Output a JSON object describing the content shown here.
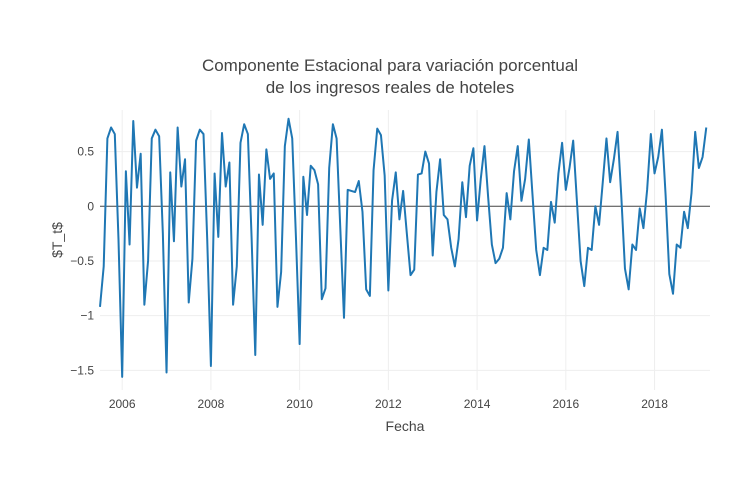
{
  "chart_data": {
    "type": "line",
    "title_lines": [
      "Componente Estacional para variación porcentual",
      "de los ingresos reales de hoteles"
    ],
    "xlabel": "Fecha",
    "ylabel": "$T_t$",
    "xlim": [
      2005.5,
      2019.25
    ],
    "ylim": [
      -1.68,
      0.88
    ],
    "x_ticks": [
      2006,
      2008,
      2010,
      2012,
      2014,
      2016,
      2018
    ],
    "x_tick_labels": [
      "2006",
      "2008",
      "2010",
      "2012",
      "2014",
      "2016",
      "2018"
    ],
    "y_ticks": [
      -1.5,
      -1,
      -0.5,
      0,
      0.5
    ],
    "y_tick_labels": [
      "−1.5",
      "−1",
      "−0.5",
      "0",
      "0.5"
    ],
    "zero_line": true,
    "grid": true,
    "series": [
      {
        "color": "#1f77b4",
        "x_start": 2005.5,
        "x_step": 0.08333,
        "values": [
          -0.92,
          -0.55,
          0.62,
          0.72,
          0.66,
          -0.3,
          -1.56,
          0.32,
          -0.35,
          0.78,
          0.17,
          0.48,
          -0.9,
          -0.5,
          0.62,
          0.7,
          0.64,
          -0.25,
          -1.52,
          0.31,
          -0.32,
          0.72,
          0.18,
          0.43,
          -0.88,
          -0.48,
          0.6,
          0.7,
          0.66,
          -0.3,
          -1.46,
          0.3,
          -0.28,
          0.67,
          0.18,
          0.4,
          -0.9,
          -0.55,
          0.58,
          0.75,
          0.66,
          -0.28,
          -1.36,
          0.29,
          -0.17,
          0.52,
          0.25,
          0.3,
          -0.92,
          -0.6,
          0.55,
          0.8,
          0.62,
          -0.28,
          -1.26,
          0.27,
          -0.08,
          0.37,
          0.33,
          0.2,
          -0.85,
          -0.75,
          0.35,
          0.75,
          0.62,
          -0.2,
          -1.02,
          0.15,
          0.14,
          0.13,
          0.23,
          -0.05,
          -0.76,
          -0.82,
          0.33,
          0.71,
          0.65,
          0.28,
          -0.77,
          0.05,
          0.31,
          -0.12,
          0.14,
          -0.25,
          -0.63,
          -0.58,
          0.29,
          0.3,
          0.5,
          0.39,
          -0.45,
          0.13,
          0.43,
          -0.08,
          -0.12,
          -0.38,
          -0.55,
          -0.3,
          0.22,
          -0.1,
          0.37,
          0.53,
          -0.13,
          0.25,
          0.55,
          0.08,
          -0.35,
          -0.52,
          -0.48,
          -0.38,
          0.12,
          -0.12,
          0.32,
          0.55,
          0.05,
          0.25,
          0.61,
          0.1,
          -0.4,
          -0.63,
          -0.38,
          -0.4,
          0.04,
          -0.15,
          0.3,
          0.58,
          0.15,
          0.35,
          0.6,
          0.05,
          -0.5,
          -0.73,
          -0.38,
          -0.4,
          0.0,
          -0.17,
          0.22,
          0.62,
          0.22,
          0.43,
          0.68,
          0.1,
          -0.57,
          -0.76,
          -0.35,
          -0.4,
          -0.02,
          -0.2,
          0.15,
          0.66,
          0.3,
          0.45,
          0.7,
          0.1,
          -0.62,
          -0.8,
          -0.35,
          -0.38,
          -0.05,
          -0.2,
          0.12,
          0.68,
          0.35,
          0.45,
          0.72
        ]
      }
    ]
  }
}
